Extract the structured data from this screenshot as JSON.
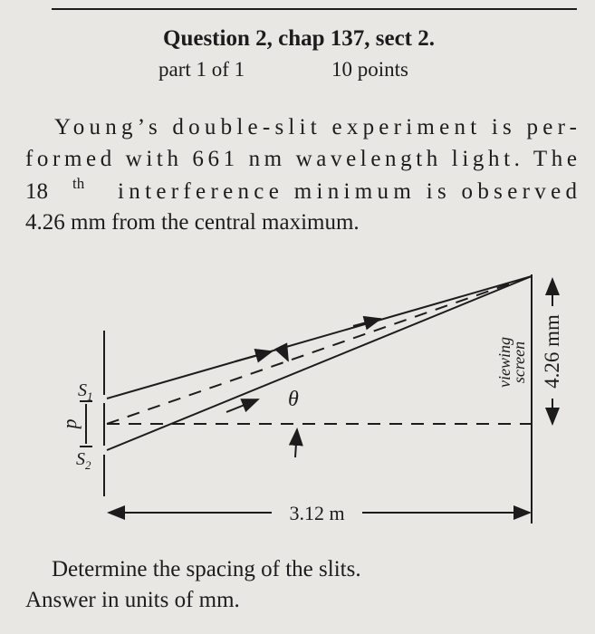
{
  "header": {
    "title": "Question 2, chap 137, sect 2.",
    "part": "part 1 of 1",
    "points": "10 points"
  },
  "problem": {
    "line1": "Young’s double-slit experiment is per-",
    "line2": "formed with 661 nm wavelength light. The",
    "line3_number": "18",
    "line3_superscript": "th",
    "line3_rest": "interference minimum is observed",
    "line4": "4.26 mm from the central maximum."
  },
  "diagram": {
    "slit1": "S",
    "slit1_index": "1",
    "slit2": "S",
    "slit2_index": "2",
    "spacing": "d",
    "angle": "θ",
    "distance": "3.12 m",
    "screen_line1": "viewing",
    "screen_line2": "screen",
    "offset": "4.26 mm"
  },
  "question": {
    "prompt": "Determine the spacing of the slits.",
    "units": "Answer in units of mm."
  }
}
